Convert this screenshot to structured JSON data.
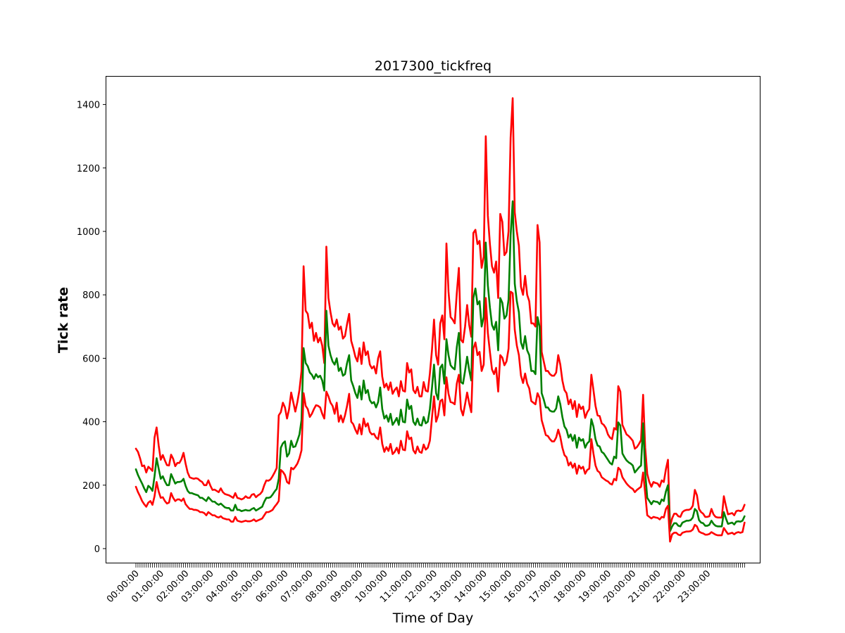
{
  "chart_data": {
    "type": "line",
    "title": "2017300_tickfreq",
    "xlabel": "Time of Day",
    "ylabel": "Tick rate",
    "x_tick_labels": [
      "00:00:00",
      "01:00:00",
      "02:00:00",
      "03:00:00",
      "04:00:00",
      "05:00:00",
      "06:00:00",
      "07:00:00",
      "08:00:00",
      "09:00:00",
      "10:00:00",
      "11:00:00",
      "12:00:00",
      "13:00:00",
      "14:00:00",
      "15:00:00",
      "16:00:00",
      "17:00:00",
      "18:00:00",
      "19:00:00",
      "20:00:00",
      "21:00:00",
      "22:00:00",
      "23:00:00"
    ],
    "y_ticks": [
      0,
      200,
      400,
      600,
      800,
      1000,
      1200,
      1400
    ],
    "ylim": [
      -47,
      1493
    ],
    "grid": false,
    "sample_interval_minutes": 5,
    "series": [
      {
        "color": "#ff0000",
        "role": "upper",
        "values": [
          315,
          305,
          285,
          260,
          262,
          240,
          258,
          252,
          245,
          350,
          382,
          325,
          280,
          295,
          278,
          263,
          262,
          296,
          283,
          260,
          270,
          270,
          282,
          302,
          268,
          240,
          225,
          222,
          220,
          222,
          220,
          214,
          210,
          200,
          200,
          215,
          198,
          185,
          186,
          182,
          178,
          190,
          178,
          172,
          170,
          168,
          164,
          160,
          175,
          160,
          158,
          155,
          158,
          165,
          160,
          160,
          170,
          172,
          162,
          168,
          172,
          180,
          200,
          215,
          214,
          218,
          228,
          240,
          254,
          420,
          430,
          460,
          445,
          410,
          440,
          492,
          462,
          432,
          462,
          500,
          560,
          890,
          750,
          740,
          695,
          712,
          655,
          680,
          650,
          665,
          640,
          585,
          952,
          790,
          745,
          710,
          700,
          722,
          690,
          700,
          662,
          670,
          708,
          740,
          655,
          632,
          605,
          590,
          632,
          582,
          650,
          610,
          622,
          580,
          568,
          575,
          552,
          600,
          622,
          542,
          508,
          520,
          500,
          524,
          488,
          500,
          508,
          480,
          528,
          498,
          495,
          585,
          555,
          565,
          500,
          490,
          510,
          480,
          480,
          525,
          498,
          495,
          552,
          625,
          722,
          610,
          580,
          710,
          735,
          660,
          962,
          810,
          730,
          722,
          710,
          805,
          885,
          658,
          650,
          700,
          768,
          705,
          668,
          995,
          1005,
          960,
          970,
          885,
          920,
          1300,
          1050,
          960,
          890,
          870,
          905,
          790,
          1055,
          1030,
          925,
          935,
          1000,
          1295,
          1420,
          1060,
          1000,
          955,
          825,
          800,
          860,
          800,
          780,
          710,
          710,
          700,
          1020,
          965,
          620,
          590,
          560,
          560,
          550,
          545,
          545,
          555,
          610,
          580,
          530,
          500,
          490,
          455,
          470,
          440,
          465,
          415,
          455,
          440,
          448,
          412,
          430,
          440,
          548,
          500,
          450,
          420,
          418,
          395,
          390,
          380,
          360,
          350,
          345,
          380,
          375,
          512,
          495,
          390,
          375,
          360,
          355,
          348,
          340,
          315,
          320,
          330,
          342,
          485,
          318,
          235,
          210,
          195,
          210,
          207,
          205,
          195,
          215,
          210,
          250,
          280,
          70,
          95,
          110,
          110,
          102,
          100,
          115,
          120,
          122,
          122,
          125,
          135,
          185,
          168,
          125,
          115,
          110,
          100,
          100,
          102,
          125,
          108,
          100,
          98,
          98,
          98,
          165,
          135,
          108,
          110,
          112,
          105,
          118,
          120,
          118,
          122,
          138
        ]
      },
      {
        "color": "#008000",
        "role": "mean",
        "values": [
          250,
          232,
          218,
          205,
          190,
          178,
          198,
          192,
          182,
          228,
          285,
          252,
          220,
          228,
          212,
          200,
          200,
          235,
          220,
          205,
          210,
          210,
          212,
          220,
          198,
          182,
          175,
          175,
          172,
          170,
          168,
          160,
          160,
          155,
          150,
          162,
          155,
          148,
          148,
          142,
          138,
          142,
          136,
          130,
          128,
          128,
          120,
          120,
          138,
          122,
          122,
          118,
          120,
          122,
          120,
          120,
          125,
          128,
          120,
          124,
          128,
          132,
          148,
          160,
          160,
          162,
          170,
          180,
          188,
          220,
          318,
          332,
          338,
          290,
          300,
          340,
          320,
          322,
          340,
          360,
          405,
          632,
          585,
          575,
          555,
          548,
          535,
          550,
          540,
          545,
          530,
          498,
          750,
          640,
          610,
          590,
          580,
          600,
          560,
          570,
          545,
          550,
          585,
          610,
          530,
          512,
          490,
          475,
          512,
          470,
          530,
          490,
          500,
          468,
          458,
          462,
          445,
          462,
          508,
          440,
          410,
          420,
          400,
          425,
          390,
          400,
          412,
          390,
          438,
          400,
          398,
          470,
          440,
          450,
          400,
          390,
          410,
          390,
          388,
          415,
          395,
          400,
          440,
          505,
          580,
          490,
          470,
          570,
          580,
          520,
          660,
          610,
          578,
          570,
          565,
          635,
          680,
          525,
          520,
          560,
          605,
          562,
          530,
          790,
          820,
          770,
          780,
          700,
          730,
          965,
          830,
          760,
          705,
          690,
          715,
          625,
          790,
          775,
          725,
          735,
          785,
          988,
          1095,
          835,
          780,
          745,
          650,
          630,
          670,
          625,
          610,
          560,
          560,
          550,
          730,
          700,
          490,
          470,
          445,
          445,
          435,
          432,
          432,
          442,
          480,
          455,
          415,
          385,
          375,
          350,
          360,
          340,
          358,
          318,
          350,
          340,
          345,
          318,
          332,
          338,
          408,
          385,
          345,
          325,
          322,
          305,
          300,
          290,
          280,
          270,
          265,
          290,
          285,
          398,
          388,
          300,
          288,
          278,
          272,
          268,
          262,
          240,
          248,
          256,
          262,
          395,
          240,
          160,
          150,
          140,
          150,
          148,
          147,
          140,
          155,
          150,
          180,
          200,
          55,
          70,
          80,
          80,
          72,
          70,
          82,
          85,
          88,
          88,
          90,
          98,
          125,
          118,
          90,
          82,
          80,
          72,
          72,
          75,
          88,
          78,
          72,
          70,
          70,
          70,
          115,
          95,
          78,
          80,
          82,
          76,
          85,
          86,
          85,
          88,
          102
        ]
      },
      {
        "color": "#ff0000",
        "role": "lower",
        "values": [
          195,
          178,
          165,
          150,
          140,
          132,
          145,
          150,
          138,
          165,
          210,
          180,
          160,
          162,
          150,
          142,
          145,
          175,
          160,
          150,
          155,
          155,
          150,
          158,
          140,
          132,
          125,
          125,
          122,
          122,
          120,
          115,
          115,
          112,
          105,
          115,
          110,
          105,
          105,
          100,
          98,
          102,
          96,
          94,
          92,
          92,
          85,
          85,
          100,
          88,
          86,
          84,
          86,
          88,
          86,
          86,
          88,
          92,
          86,
          89,
          92,
          95,
          105,
          115,
          115,
          118,
          122,
          132,
          140,
          150,
          248,
          242,
          232,
          210,
          205,
          255,
          250,
          258,
          268,
          285,
          310,
          490,
          450,
          440,
          415,
          425,
          440,
          452,
          450,
          445,
          425,
          410,
          495,
          480,
          460,
          450,
          425,
          460,
          400,
          420,
          398,
          420,
          450,
          488,
          400,
          392,
          375,
          362,
          392,
          360,
          410,
          385,
          395,
          368,
          360,
          362,
          350,
          345,
          382,
          330,
          305,
          320,
          308,
          330,
          298,
          305,
          318,
          300,
          340,
          312,
          310,
          370,
          345,
          350,
          310,
          300,
          322,
          305,
          302,
          328,
          312,
          318,
          340,
          412,
          480,
          400,
          420,
          465,
          470,
          420,
          540,
          488,
          462,
          460,
          455,
          520,
          548,
          440,
          420,
          455,
          492,
          458,
          430,
          630,
          650,
          610,
          620,
          560,
          580,
          790,
          680,
          620,
          565,
          550,
          570,
          495,
          610,
          602,
          578,
          590,
          630,
          810,
          805,
          690,
          640,
          610,
          545,
          522,
          552,
          520,
          505,
          465,
          460,
          455,
          490,
          475,
          405,
          382,
          358,
          355,
          345,
          338,
          338,
          350,
          375,
          352,
          318,
          295,
          288,
          262,
          272,
          255,
          268,
          236,
          262,
          252,
          258,
          236,
          248,
          252,
          345,
          300,
          262,
          245,
          240,
          225,
          220,
          215,
          212,
          205,
          202,
          220,
          215,
          255,
          248,
          225,
          215,
          205,
          198,
          192,
          188,
          178,
          185,
          190,
          195,
          240,
          175,
          105,
          100,
          95,
          100,
          98,
          97,
          92,
          100,
          98,
          125,
          135,
          22,
          45,
          50,
          50,
          44,
          42,
          50,
          52,
          54,
          54,
          55,
          60,
          75,
          70,
          54,
          50,
          48,
          44,
          44,
          46,
          52,
          48,
          44,
          42,
          42,
          42,
          65,
          55,
          46,
          48,
          50,
          45,
          50,
          52,
          50,
          52,
          82
        ]
      }
    ]
  }
}
